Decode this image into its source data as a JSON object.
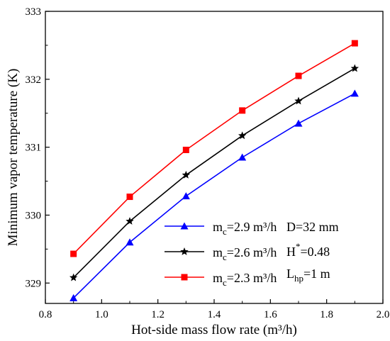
{
  "chart_data": {
    "type": "line",
    "xlabel": "Hot-side mass flow rate (m³/h)",
    "ylabel": "Minimum vapor  temperature (K)",
    "xlim": [
      0.8,
      2.0
    ],
    "ylim": [
      328.7,
      333.0
    ],
    "x_ticks": [
      "0.8",
      "1.0",
      "1.2",
      "1.4",
      "1.6",
      "1.8",
      "2.0"
    ],
    "y_ticks": [
      "329",
      "330",
      "331",
      "332",
      "333"
    ],
    "x": [
      0.9,
      1.1,
      1.3,
      1.5,
      1.7,
      1.9
    ],
    "grid": false,
    "legend_position": "bottom-right",
    "series": [
      {
        "name": "m_c=2.9 m³/h",
        "label_base": "m",
        "label_sub": "c",
        "label_rest": "=2.9 m³/h",
        "color": "#0000ff",
        "marker": "triangle",
        "values": [
          328.78,
          329.6,
          330.28,
          330.85,
          331.35,
          331.79
        ]
      },
      {
        "name": "m_c=2.6 m³/h",
        "label_base": "m",
        "label_sub": "c",
        "label_rest": "=2.6 m³/h",
        "color": "#000000",
        "marker": "star",
        "values": [
          329.08,
          329.91,
          330.59,
          331.17,
          331.68,
          332.16
        ]
      },
      {
        "name": "m_c=2.3 m³/h",
        "label_base": "m",
        "label_sub": "c",
        "label_rest": "=2.3 m³/h",
        "color": "#ff0000",
        "marker": "square",
        "values": [
          329.43,
          330.27,
          330.96,
          331.54,
          332.05,
          332.53
        ]
      }
    ],
    "annotations": {
      "diameter": "D=32 mm",
      "height_base": "H",
      "height_sup": "*",
      "height_rest": "=0.48",
      "length_base": "L",
      "length_sub": "hp",
      "length_rest": "=1 m"
    }
  }
}
